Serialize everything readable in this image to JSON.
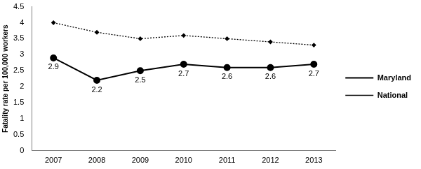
{
  "chart_data": {
    "type": "line",
    "y_label": "Fatality rate per 100,000 workers",
    "categories": [
      "2007",
      "2008",
      "2009",
      "2010",
      "2011",
      "2012",
      "2013"
    ],
    "series": [
      {
        "name": "Maryland",
        "color": "#000000",
        "marker": "circle",
        "line_style": "solid",
        "data_labels": true,
        "values": [
          2.9,
          2.2,
          2.5,
          2.7,
          2.6,
          2.6,
          2.7
        ]
      },
      {
        "name": "National",
        "color": "#000000",
        "marker": "diamond",
        "line_style": "dotted",
        "values": [
          4.0,
          3.7,
          3.5,
          3.6,
          3.5,
          3.4,
          3.3
        ]
      }
    ],
    "ylim": [
      0,
      4.5
    ],
    "yticks": [
      0,
      0.5,
      1,
      1.5,
      2,
      2.5,
      3,
      3.5,
      4,
      4.5
    ],
    "grid": false,
    "legend": "right"
  }
}
